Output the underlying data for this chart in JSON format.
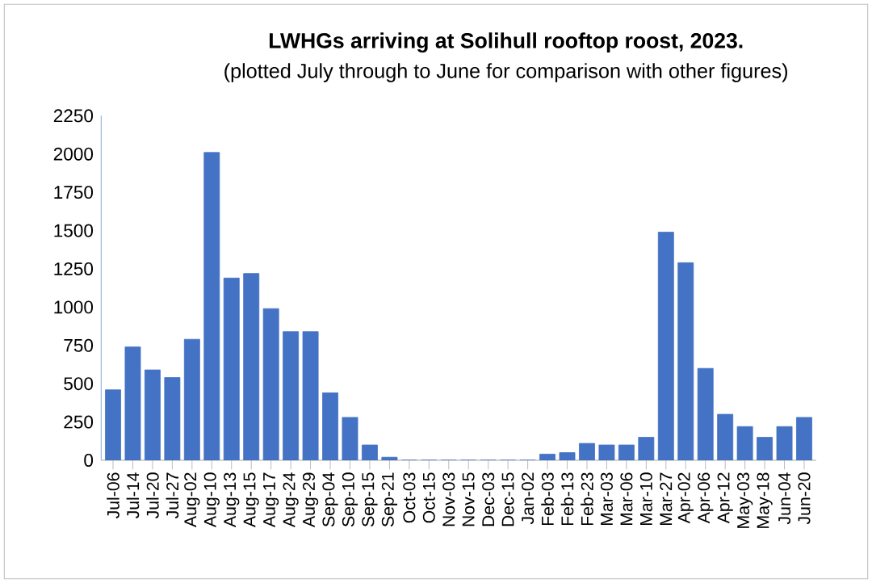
{
  "chart_data": {
    "type": "bar",
    "title": "LWHGs arriving at Solihull rooftop roost, 2023.",
    "subtitle": "(plotted July through to June for comparison with other figures)",
    "categories": [
      "Jul-06",
      "Jul-14",
      "Jul-20",
      "Jul-27",
      "Aug-02",
      "Aug-10",
      "Aug-13",
      "Aug-15",
      "Aug-17",
      "Aug-24",
      "Aug-29",
      "Sep-04",
      "Sep-10",
      "Sep-15",
      "Sep-21",
      "Oct-03",
      "Oct-15",
      "Nov-03",
      "Nov-15",
      "Dec-03",
      "Dec-15",
      "Jan-02",
      "Feb-03",
      "Feb-13",
      "Feb-23",
      "Mar-03",
      "Mar-06",
      "Mar-10",
      "Mar-27",
      "Apr-02",
      "Apr-06",
      "Apr-12",
      "May-03",
      "May-18",
      "Jun-04",
      "Jun-20"
    ],
    "values": [
      460,
      740,
      590,
      540,
      790,
      2010,
      1190,
      1220,
      990,
      840,
      840,
      440,
      280,
      100,
      20,
      0,
      0,
      0,
      0,
      0,
      0,
      0,
      40,
      50,
      110,
      100,
      100,
      150,
      1490,
      1290,
      600,
      300,
      220,
      150,
      220,
      280
    ],
    "color": "#4472c4",
    "ylim": [
      0,
      2250
    ],
    "yticks": [
      0,
      250,
      500,
      750,
      1000,
      1250,
      1500,
      1750,
      2000,
      2250
    ],
    "grid": false
  }
}
